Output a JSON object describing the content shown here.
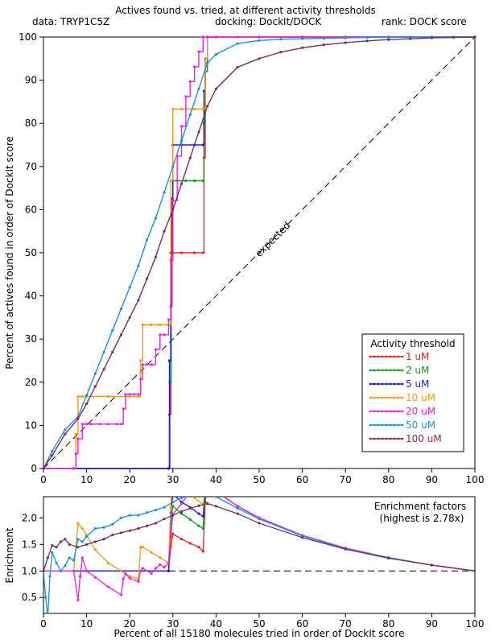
{
  "header": {
    "title": "Actives found vs. tried, at different activity thresholds",
    "data_label": "data: TRYP1C5Z",
    "docking_label": "docking: DockIt/DOCK",
    "rank_label": "rank: DOCK score"
  },
  "chart_data": [
    {
      "type": "line",
      "ylabel": "Percent of actives found in order of DockIt score",
      "xlim": [
        0,
        100
      ],
      "ylim": [
        0,
        100
      ],
      "xticks": [
        "0",
        "10",
        "20",
        "30",
        "40",
        "50",
        "60",
        "70",
        "80",
        "90",
        "100"
      ],
      "yticks": [
        "0",
        "10",
        "20",
        "30",
        "40",
        "50",
        "60",
        "70",
        "80",
        "90",
        "100"
      ],
      "expected_label": "expected",
      "legend": {
        "title": "Activity threshold",
        "placement": "bottom-right"
      },
      "series": [
        {
          "name": "1 uM",
          "color": "#e8231f",
          "x": [
            0,
            29,
            29.2,
            29.5,
            29.8,
            30,
            32,
            35,
            37,
            37.2,
            37.5,
            38,
            40,
            45,
            50,
            60,
            70,
            80,
            90,
            100
          ],
          "y": [
            0,
            0,
            12.5,
            37.5,
            50,
            50,
            50,
            50,
            50,
            72,
            95,
            100,
            100,
            100,
            100,
            100,
            100,
            100,
            100,
            100
          ]
        },
        {
          "name": "2 uM",
          "color": "#119a1e",
          "x": [
            0,
            29,
            29.3,
            29.6,
            30,
            31,
            33,
            35,
            37,
            37.2,
            37.5,
            38,
            40,
            50,
            60,
            70,
            80,
            90,
            100
          ],
          "y": [
            0,
            0,
            20,
            50,
            66.7,
            66.7,
            66.7,
            66.7,
            66.7,
            80,
            92,
            100,
            100,
            100,
            100,
            100,
            100,
            100,
            100
          ]
        },
        {
          "name": "5 uM",
          "color": "#1c1ccf",
          "x": [
            0,
            29,
            29.2,
            29.5,
            29.8,
            30,
            32,
            35,
            37,
            37.2,
            37.5,
            38,
            40,
            50,
            60,
            70,
            80,
            90,
            100
          ],
          "y": [
            0,
            0,
            25,
            50,
            62.5,
            75,
            75,
            75,
            75,
            87.5,
            95,
            100,
            100,
            100,
            100,
            100,
            100,
            100,
            100
          ]
        },
        {
          "name": "10 uM",
          "color": "#f59a0d",
          "x": [
            0,
            7,
            7.5,
            8,
            9,
            10,
            15,
            20,
            22,
            22.5,
            23,
            25,
            27,
            29,
            29.5,
            30,
            32,
            35,
            37,
            37.5,
            38,
            40,
            50,
            60,
            70,
            80,
            90,
            100
          ],
          "y": [
            0,
            0,
            8,
            16.7,
            16.7,
            16.7,
            16.7,
            16.7,
            16.7,
            25,
            33.3,
            33.3,
            33.3,
            33.3,
            66.7,
            83.3,
            83.3,
            83.3,
            83.3,
            95,
            100,
            100,
            100,
            100,
            100,
            100,
            100,
            100
          ]
        },
        {
          "name": "20 uM",
          "color": "#ee1fe9",
          "x": [
            0,
            7,
            7.5,
            8,
            9,
            10,
            11,
            13,
            15,
            17,
            18,
            18.5,
            19,
            20,
            21,
            22,
            22.5,
            23,
            24,
            25,
            26,
            27,
            28,
            29,
            29.5,
            30,
            31,
            32,
            33,
            34,
            35,
            36,
            37,
            38,
            40,
            50,
            60,
            70,
            80,
            90,
            100
          ],
          "y": [
            0,
            0,
            3.4,
            6.9,
            10.3,
            10.3,
            10.3,
            10.3,
            10.3,
            10.3,
            10.3,
            13.8,
            17.2,
            17.2,
            17.2,
            17.2,
            20.7,
            24.1,
            24.1,
            24.1,
            27.6,
            31.0,
            31.0,
            34.5,
            48.3,
            62.1,
            72.4,
            79.3,
            86.2,
            89.7,
            93.1,
            96.6,
            100,
            100,
            100,
            100,
            100,
            100,
            100,
            100,
            100
          ]
        },
        {
          "name": "50 uM",
          "color": "#1a8fe8",
          "x": [
            0,
            2,
            5,
            8,
            10,
            12,
            14,
            16,
            18,
            20,
            22,
            24,
            26,
            28,
            30,
            32,
            34,
            36,
            38,
            40,
            45,
            50,
            55,
            60,
            65,
            70,
            75,
            80,
            85,
            90,
            95,
            100
          ],
          "y": [
            0,
            4,
            9,
            12,
            17,
            22,
            27,
            32,
            37,
            42,
            47,
            53,
            58,
            64,
            70,
            76,
            82,
            88,
            94,
            96,
            98.5,
            99.2,
            99.5,
            99.6,
            99.7,
            99.8,
            99.9,
            100,
            100,
            100,
            100,
            100
          ]
        },
        {
          "name": "100 uM",
          "color": "#7a2d5e",
          "x": [
            0,
            2,
            5,
            8,
            10,
            12,
            14,
            16,
            18,
            20,
            22,
            24,
            26,
            28,
            30,
            32,
            34,
            36,
            38,
            40,
            45,
            50,
            55,
            60,
            65,
            70,
            75,
            80,
            85,
            90,
            95,
            100
          ],
          "y": [
            0,
            3,
            8,
            11.5,
            15,
            19,
            23,
            27,
            31,
            35,
            39,
            44,
            49,
            55,
            60,
            66,
            72,
            78,
            84,
            88,
            93,
            95,
            96.5,
            97.5,
            98.2,
            98.7,
            99.1,
            99.4,
            99.6,
            99.8,
            99.9,
            100
          ]
        }
      ]
    },
    {
      "type": "line",
      "xlabel": "Percent of all 15180 molecules tried in order of DockIt score",
      "ylabel": "Enrichment",
      "xlim": [
        0,
        100
      ],
      "ylim": [
        0.2,
        2.4
      ],
      "xticks": [
        "0",
        "10",
        "20",
        "30",
        "40",
        "50",
        "60",
        "70",
        "80",
        "90",
        "100"
      ],
      "yticks": [
        "0.5",
        "1.0",
        "1.5",
        "2.0"
      ],
      "annotation_title": "Enrichment factors",
      "annotation_sub": "(highest is 2.78x)",
      "baseline": 1.0,
      "series": [
        {
          "name": "1 uM",
          "color": "#e8231f",
          "x": [
            0,
            29,
            29.5,
            30,
            32,
            34,
            36,
            37,
            37.5,
            38,
            40,
            45,
            50,
            60,
            70,
            80,
            90,
            100
          ],
          "y": [
            1,
            1,
            1.45,
            1.7,
            1.6,
            1.52,
            1.45,
            1.37,
            2.3,
            2.65,
            2.5,
            2.22,
            2.0,
            1.67,
            1.43,
            1.25,
            1.11,
            1.0
          ]
        },
        {
          "name": "2 uM",
          "color": "#119a1e",
          "x": [
            0,
            29,
            29.5,
            30,
            32,
            34,
            36,
            37,
            37.5,
            38,
            40,
            45,
            50,
            60,
            70,
            80,
            90,
            100
          ],
          "y": [
            1,
            1,
            1.9,
            2.22,
            2.08,
            1.97,
            1.85,
            1.8,
            2.45,
            2.65,
            2.5,
            2.22,
            2.0,
            1.67,
            1.43,
            1.25,
            1.11,
            1.0
          ]
        },
        {
          "name": "5 uM",
          "color": "#1c1ccf",
          "x": [
            0,
            29,
            29.5,
            30,
            32,
            34,
            36,
            37,
            37.5,
            38,
            40,
            45,
            50,
            60,
            70,
            80,
            90,
            100
          ],
          "y": [
            1,
            1,
            2.1,
            2.45,
            2.3,
            2.2,
            2.08,
            2.03,
            2.55,
            2.65,
            2.5,
            2.22,
            2.0,
            1.67,
            1.43,
            1.25,
            1.11,
            1.0
          ]
        },
        {
          "name": "10 uM",
          "color": "#f59a0d",
          "x": [
            0,
            7,
            8,
            9,
            10,
            12,
            15,
            18,
            20,
            22,
            22.5,
            23,
            25,
            27,
            29,
            29.5,
            30,
            32,
            35,
            37,
            37.5,
            38,
            40,
            45,
            50,
            60,
            70,
            80,
            90,
            100
          ],
          "y": [
            1,
            1,
            1.9,
            1.8,
            1.67,
            1.4,
            1.15,
            1.0,
            0.9,
            0.85,
            1.45,
            1.45,
            1.35,
            1.25,
            1.15,
            2.2,
            2.78,
            2.6,
            2.38,
            2.25,
            2.55,
            2.65,
            2.5,
            2.22,
            2.0,
            1.67,
            1.43,
            1.25,
            1.11,
            1.0
          ]
        },
        {
          "name": "20 uM",
          "color": "#ee1fe9",
          "x": [
            0,
            7,
            8,
            8.5,
            9,
            10,
            12,
            15,
            18,
            18.5,
            19,
            20,
            22,
            22.5,
            23,
            25,
            26,
            27,
            28,
            29,
            29.5,
            30,
            32,
            34,
            36,
            37,
            38,
            40,
            45,
            50,
            60,
            70,
            80,
            90,
            100
          ],
          "y": [
            1,
            1,
            0.45,
            0.9,
            1.25,
            1.0,
            0.88,
            0.7,
            0.55,
            0.85,
            0.95,
            0.86,
            0.8,
            1.0,
            1.05,
            0.95,
            1.05,
            1.12,
            1.07,
            1.15,
            1.65,
            2.07,
            2.27,
            2.5,
            2.58,
            2.7,
            2.63,
            2.5,
            2.22,
            2.0,
            1.67,
            1.43,
            1.25,
            1.11,
            1.0
          ]
        },
        {
          "name": "50 uM",
          "color": "#1a8fe8",
          "x": [
            0,
            0.5,
            1,
            1.5,
            2,
            3,
            4,
            5,
            6,
            7,
            8,
            9,
            10,
            12,
            14,
            16,
            18,
            20,
            22,
            24,
            26,
            28,
            30,
            32,
            34,
            36,
            38,
            40,
            45,
            50,
            60,
            70,
            80,
            90,
            100
          ],
          "y": [
            1,
            0.5,
            0.15,
            0.9,
            1.35,
            1.15,
            1.0,
            1.1,
            1.25,
            1.2,
            1.6,
            1.55,
            1.65,
            1.8,
            1.82,
            1.88,
            2.0,
            2.05,
            2.05,
            2.1,
            2.15,
            2.2,
            2.3,
            2.38,
            2.42,
            2.45,
            2.47,
            2.4,
            2.18,
            1.98,
            1.66,
            1.42,
            1.25,
            1.11,
            1.0
          ]
        },
        {
          "name": "100 uM",
          "color": "#7a2d5e",
          "x": [
            0,
            1,
            2,
            3,
            4,
            5,
            6,
            8,
            10,
            12,
            14,
            16,
            18,
            20,
            22,
            24,
            26,
            28,
            30,
            32,
            34,
            36,
            38,
            40,
            45,
            50,
            60,
            70,
            80,
            90,
            100
          ],
          "y": [
            1,
            1.25,
            1.48,
            1.45,
            1.55,
            1.6,
            1.5,
            1.45,
            1.5,
            1.55,
            1.6,
            1.68,
            1.72,
            1.76,
            1.8,
            1.85,
            1.9,
            1.98,
            2.05,
            2.12,
            2.18,
            2.23,
            2.27,
            2.22,
            2.08,
            1.9,
            1.63,
            1.41,
            1.24,
            1.11,
            1.0
          ]
        }
      ]
    }
  ]
}
